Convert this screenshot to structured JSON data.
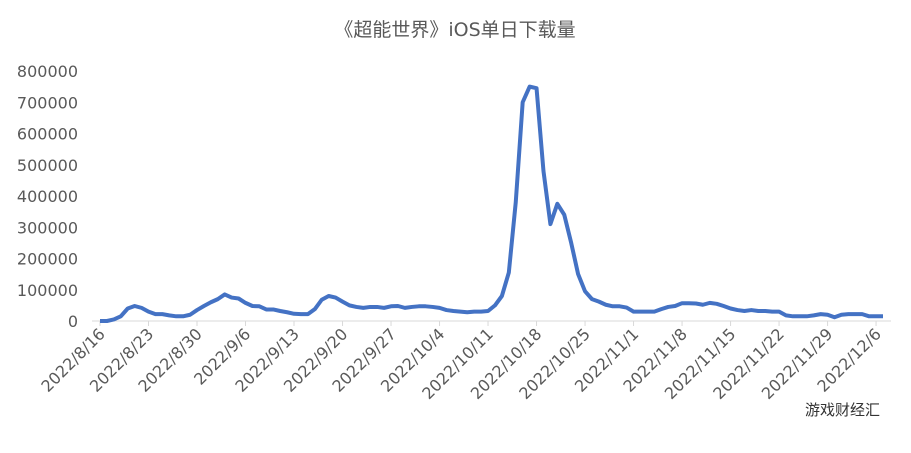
{
  "chart_data": {
    "type": "line",
    "title": "《超能世界》iOS单日下载量",
    "categories": [
      "2022/8/16",
      null,
      null,
      null,
      null,
      null,
      null,
      "2022/8/23",
      null,
      null,
      null,
      null,
      null,
      null,
      "2022/8/30",
      null,
      null,
      null,
      null,
      null,
      null,
      "2022/9/6",
      null,
      null,
      null,
      null,
      null,
      null,
      "2022/9/13",
      null,
      null,
      null,
      null,
      null,
      null,
      "2022/9/20",
      null,
      null,
      null,
      null,
      null,
      null,
      "2022/9/27",
      null,
      null,
      null,
      null,
      null,
      null,
      "2022/10/4",
      null,
      null,
      null,
      null,
      null,
      null,
      "2022/10/11",
      null,
      null,
      null,
      null,
      null,
      null,
      "2022/10/18",
      null,
      null,
      null,
      null,
      null,
      null,
      "2022/10/25",
      null,
      null,
      null,
      null,
      null,
      null,
      "2022/11/1",
      null,
      null,
      null,
      null,
      null,
      null,
      "2022/11/8",
      null,
      null,
      null,
      null,
      null,
      null,
      "2022/11/15",
      null,
      null,
      null,
      null,
      null,
      null,
      "2022/11/22",
      null,
      null,
      null,
      null,
      null,
      null,
      "2022/11/29",
      null,
      null,
      null,
      null,
      null,
      null,
      "2022/12/6",
      null
    ],
    "values": [
      0,
      0,
      5000,
      15000,
      40000,
      48000,
      42000,
      30000,
      22000,
      22000,
      18000,
      15000,
      15000,
      20000,
      35000,
      48000,
      60000,
      70000,
      85000,
      75000,
      72000,
      58000,
      48000,
      47000,
      37000,
      37000,
      32000,
      28000,
      23000,
      22000,
      22000,
      38000,
      68000,
      80000,
      75000,
      62000,
      50000,
      45000,
      42000,
      45000,
      45000,
      42000,
      47000,
      48000,
      42000,
      45000,
      47000,
      47000,
      45000,
      42000,
      35000,
      32000,
      30000,
      28000,
      30000,
      30000,
      32000,
      50000,
      80000,
      155000,
      380000,
      700000,
      750000,
      745000,
      480000,
      310000,
      375000,
      340000,
      250000,
      150000,
      95000,
      70000,
      62000,
      52000,
      47000,
      47000,
      43000,
      30000,
      30000,
      30000,
      30000,
      38000,
      45000,
      48000,
      57000,
      57000,
      56000,
      52000,
      58000,
      55000,
      48000,
      40000,
      35000,
      32000,
      35000,
      32000,
      32000,
      30000,
      30000,
      18000,
      15000,
      15000,
      15000,
      18000,
      22000,
      20000,
      12000,
      20000,
      22000,
      22000,
      22000,
      15000,
      15000,
      15000
    ],
    "color": "#4472c4",
    "ylim": [
      0,
      800000
    ],
    "yticks": [
      0,
      100000,
      200000,
      300000,
      400000,
      500000,
      600000,
      700000,
      800000
    ],
    "grid": false,
    "watermark": "游戏财经汇"
  }
}
